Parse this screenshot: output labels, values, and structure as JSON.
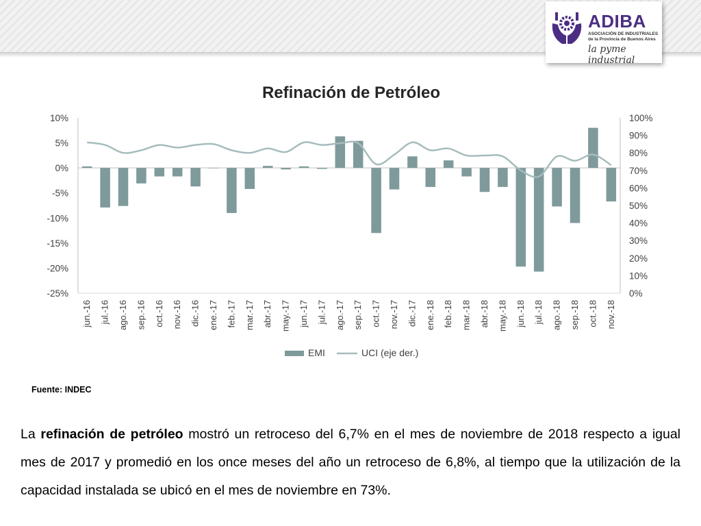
{
  "logo": {
    "name": "ADIBA",
    "subtitle_line1": "ASOCIACIÓN DE INDUSTRIALES",
    "subtitle_line2": "de la Provincia de Buenos Aires",
    "slogan": "la pyme industrial"
  },
  "chart_data": {
    "type": "bar",
    "title": "Refinación de Petróleo",
    "categories": [
      "jun.-16",
      "jul.-16",
      "ago.-16",
      "sep.-16",
      "oct.-16",
      "nov.-16",
      "dic.-16",
      "ene.-17",
      "feb.-17",
      "mar.-17",
      "abr.-17",
      "may.-17",
      "jun.-17",
      "jul.-17",
      "ago.-17",
      "sep.-17",
      "oct.-17",
      "nov.-17",
      "dic.-17",
      "ene.-18",
      "feb.-18",
      "mar.-18",
      "abr.-18",
      "may.-18",
      "jun.-18",
      "jul.-18",
      "ago.-18",
      "sep.-18",
      "oct.-18",
      "nov.-18"
    ],
    "series": [
      {
        "name": "EMI",
        "type": "bar",
        "axis": "left",
        "color": "#7f9a9b",
        "values": [
          0.3,
          -7.9,
          -7.6,
          -3.1,
          -1.7,
          -1.7,
          -3.7,
          0.0,
          -9.0,
          -4.2,
          0.4,
          -0.3,
          0.3,
          -0.2,
          6.3,
          5.4,
          -13.0,
          -4.3,
          2.3,
          -3.8,
          1.5,
          -1.7,
          -4.8,
          -3.8,
          -19.7,
          -20.7,
          -7.7,
          -11.0,
          8.0,
          -6.7
        ]
      },
      {
        "name": "UCI (eje der.)",
        "type": "line",
        "axis": "right",
        "color": "#a6bcbd",
        "values": [
          86,
          84.5,
          80,
          81.5,
          84.5,
          83,
          84.5,
          85,
          81.5,
          80,
          82.5,
          80.5,
          86,
          84.5,
          85.5,
          85.5,
          73.5,
          79,
          86,
          81.5,
          82.5,
          78.5,
          78.5,
          78,
          70,
          66.5,
          78,
          75.5,
          79,
          73
        ]
      }
    ],
    "y_left": {
      "min": -25,
      "max": 10,
      "step": 5,
      "ticks": [
        "10%",
        "5%",
        "0%",
        "-5%",
        "-10%",
        "-15%",
        "-20%",
        "-25%"
      ]
    },
    "y_right": {
      "min": 0,
      "max": 100,
      "step": 10,
      "ticks": [
        "100%",
        "90%",
        "80%",
        "70%",
        "60%",
        "50%",
        "40%",
        "30%",
        "20%",
        "10%",
        "0%"
      ]
    },
    "legend": [
      "EMI",
      "UCI (eje der.)"
    ],
    "legend_position": "bottom",
    "grid": false
  },
  "source": "Fuente: INDEC",
  "paragraph": {
    "pre": "La ",
    "bold": "refinación de petróleo",
    "post": " mostró un retroceso del 6,7% en el mes de noviembre de 2018 respecto a igual mes de 2017 y promedió en los once meses del año un retroceso de 6,8%, al tiempo que la utilización de la capacidad instalada se ubicó en el mes de noviembre en 73%."
  }
}
